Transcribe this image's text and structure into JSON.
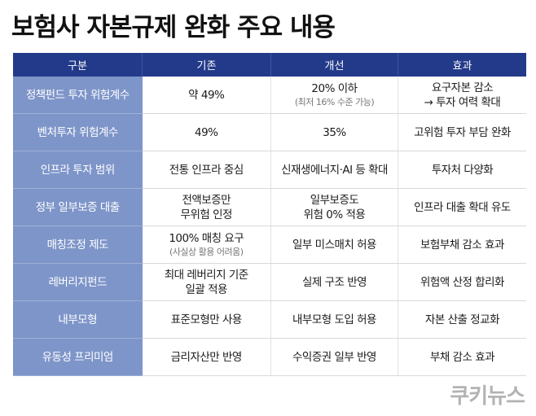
{
  "title": "보험사 자본규제 완화 주요 내용",
  "table": {
    "headers": [
      "구분",
      "기존",
      "개선",
      "효과"
    ],
    "rows": [
      {
        "category": "정책펀드 투자 위험계수",
        "before": [
          "약 49%"
        ],
        "after": [
          "20% 이하"
        ],
        "after_note": "(최저 16% 수준 가능)",
        "effect": [
          "요구자본 감소",
          "→ 투자 여력 확대"
        ]
      },
      {
        "category": "벤처투자 위험계수",
        "before": [
          "49%"
        ],
        "after": [
          "35%"
        ],
        "effect": [
          "고위험 투자 부담 완화"
        ]
      },
      {
        "category": "인프라 투자 범위",
        "before": [
          "전통 인프라 중심"
        ],
        "after": [
          "신재생에너지·AI 등 확대"
        ],
        "effect": [
          "투자처 다양화"
        ]
      },
      {
        "category": "정부 일부보증 대출",
        "before": [
          "전액보증만",
          "무위험 인정"
        ],
        "after": [
          "일부보증도",
          "위험 0% 적용"
        ],
        "effect": [
          "인프라 대출 확대 유도"
        ]
      },
      {
        "category": "매칭조정 제도",
        "before": [
          "100% 매칭 요구"
        ],
        "before_note": "(사실상 활용 어려움)",
        "after": [
          "일부 미스매치 허용"
        ],
        "effect": [
          "보험부채 감소 효과"
        ]
      },
      {
        "category": "레버리지펀드",
        "before": [
          "최대 레버리지 기준",
          "일괄 적용"
        ],
        "after": [
          "실제 구조 반영"
        ],
        "effect": [
          "위험액 산정 합리화"
        ]
      },
      {
        "category": "내부모형",
        "before": [
          "표준모형만 사용"
        ],
        "after": [
          "내부모형 도입 허용"
        ],
        "effect": [
          "자본 산출 정교화"
        ]
      },
      {
        "category": "유동성 프리미엄",
        "before": [
          "금리자산만 반영"
        ],
        "after": [
          "수익증권 일부 반영"
        ],
        "effect": [
          "부채 감소 효과"
        ]
      }
    ]
  },
  "logo": "쿠키뉴스"
}
